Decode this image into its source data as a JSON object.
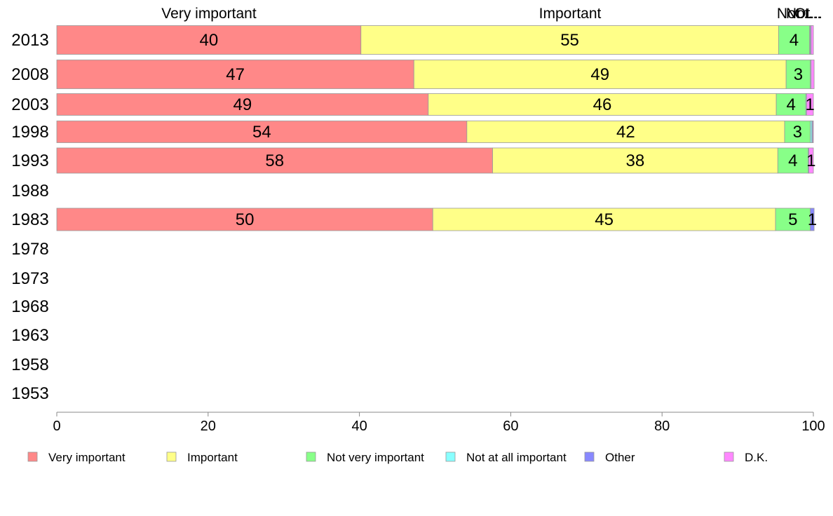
{
  "chart_data": {
    "type": "bar",
    "orientation": "horizontal",
    "stacked": true,
    "categories": [
      "2013",
      "2008",
      "2003",
      "1998",
      "1993",
      "1988",
      "1983",
      "1978",
      "1973",
      "1968",
      "1963",
      "1958",
      "1953"
    ],
    "series": [
      {
        "name": "Very important",
        "color": "#ff8888",
        "values": [
          40.2,
          47.2,
          49.1,
          54.2,
          57.6,
          null,
          49.7,
          null,
          null,
          null,
          null,
          null,
          null
        ],
        "labels": [
          "40",
          "47",
          "49",
          "54",
          "58",
          "",
          "50",
          "",
          "",
          "",
          "",
          "",
          ""
        ]
      },
      {
        "name": "Important",
        "color": "#ffff88",
        "values": [
          55.2,
          49.2,
          46.0,
          42.0,
          37.7,
          null,
          45.3,
          null,
          null,
          null,
          null,
          null,
          null
        ],
        "labels": [
          "55",
          "49",
          "46",
          "42",
          "38",
          "",
          "45",
          "",
          "",
          "",
          "",
          "",
          ""
        ]
      },
      {
        "name": "Not very important",
        "color": "#88ff88",
        "values": [
          4.1,
          3.2,
          3.9,
          3.4,
          4.0,
          null,
          4.6,
          null,
          null,
          null,
          null,
          null,
          null
        ],
        "labels": [
          "4",
          "3",
          "4",
          "3",
          "4",
          "",
          "5",
          "",
          "",
          "",
          "",
          "",
          ""
        ]
      },
      {
        "name": "Not at all important",
        "color": "#88ffff",
        "values": [
          0.1,
          0.1,
          0.1,
          0.2,
          0.1,
          null,
          0.0,
          null,
          null,
          null,
          null,
          null,
          null
        ],
        "labels": [
          "",
          "",
          "",
          "",
          "",
          "",
          "",
          "",
          "",
          "",
          "",
          "",
          ""
        ]
      },
      {
        "name": "Other",
        "color": "#8888ff",
        "values": [
          0.1,
          0.0,
          0.0,
          0.1,
          0.0,
          null,
          0.5,
          null,
          null,
          null,
          null,
          null,
          null
        ],
        "labels": [
          "",
          "",
          "",
          "",
          "",
          "",
          "1",
          "",
          "",
          "",
          "",
          "",
          ""
        ]
      },
      {
        "name": "D.K.",
        "color": "#ff88ff",
        "values": [
          0.3,
          0.4,
          0.9,
          0.1,
          0.6,
          null,
          0.0,
          null,
          null,
          null,
          null,
          null,
          null
        ],
        "labels": [
          "",
          "",
          "1",
          "",
          "1",
          "",
          "",
          "",
          "",
          "",
          "",
          "",
          ""
        ]
      }
    ],
    "top_labels": [
      "Very important",
      "Important",
      "Not...",
      "Not...",
      "Ot..."
    ],
    "xlim": [
      0,
      100
    ],
    "xticks": [
      "0",
      "20",
      "40",
      "60",
      "80",
      "100"
    ],
    "grid": false,
    "legend": {
      "placement": "bottom",
      "entries": [
        "Very important",
        "Important",
        "Not very important",
        "Not at all important",
        "Other",
        "D.K."
      ]
    },
    "title": "",
    "xlabel": "",
    "ylabel": ""
  }
}
